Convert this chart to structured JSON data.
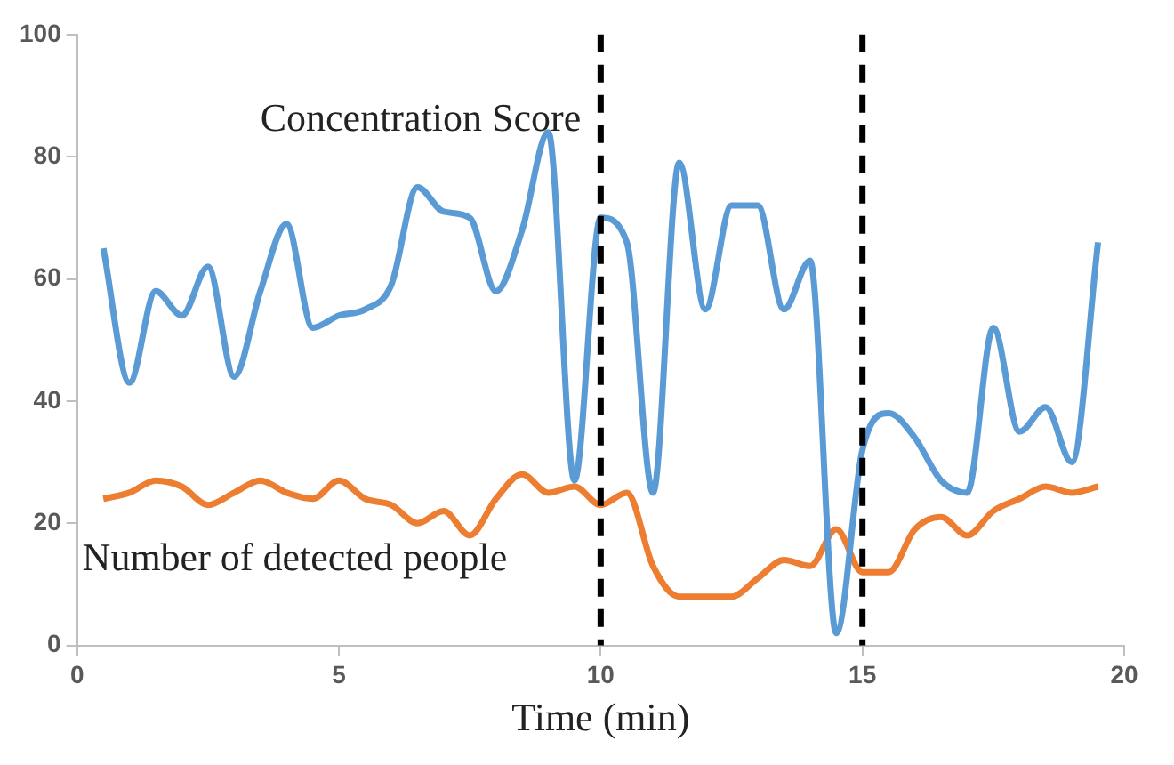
{
  "chart_data": {
    "type": "line",
    "xlabel": "Time (min)",
    "x": [
      0.5,
      1,
      1.5,
      2,
      2.5,
      3,
      3.5,
      4,
      4.5,
      5,
      5.5,
      6,
      6.5,
      7,
      7.5,
      8,
      8.5,
      9,
      9.5,
      10,
      10.5,
      11,
      11.5,
      12,
      12.5,
      13,
      13.5,
      14,
      14.5,
      15,
      15.5,
      16,
      16.5,
      17,
      17.5,
      18,
      18.5,
      19,
      19.5
    ],
    "series": [
      {
        "name": "Concentration Score",
        "color": "#5b9bd5",
        "values": [
          65,
          43,
          58,
          54,
          62,
          44,
          58,
          69,
          52,
          54,
          55,
          59,
          75,
          71,
          70,
          58,
          68,
          84,
          27,
          70,
          66,
          25,
          79,
          55,
          72,
          72,
          55,
          63,
          2,
          32,
          38,
          34,
          27,
          25,
          52,
          35,
          39,
          30,
          66
        ]
      },
      {
        "name": "Number of detected people",
        "color": "#ed7d31",
        "values": [
          24,
          25,
          27,
          26,
          23,
          25,
          27,
          25,
          24,
          27,
          24,
          23,
          20,
          22,
          18,
          24,
          28,
          25,
          26,
          23,
          25,
          13,
          8,
          8,
          8,
          11,
          14,
          13,
          19,
          12,
          12,
          19,
          21,
          18,
          22,
          24,
          26,
          25,
          26
        ]
      }
    ],
    "xlim": [
      0,
      20
    ],
    "xticks": [
      0,
      5,
      10,
      15,
      20
    ],
    "ylim": [
      0,
      100
    ],
    "yticks": [
      0,
      20,
      40,
      60,
      80,
      100
    ],
    "grid": false,
    "legend": false,
    "marker": "none",
    "line_style": "solid",
    "ref_lines": [
      {
        "axis": "x",
        "value": 10,
        "color": "#000000",
        "line_style": "dashed"
      },
      {
        "axis": "x",
        "value": 15,
        "color": "#000000",
        "line_style": "dashed"
      }
    ]
  }
}
